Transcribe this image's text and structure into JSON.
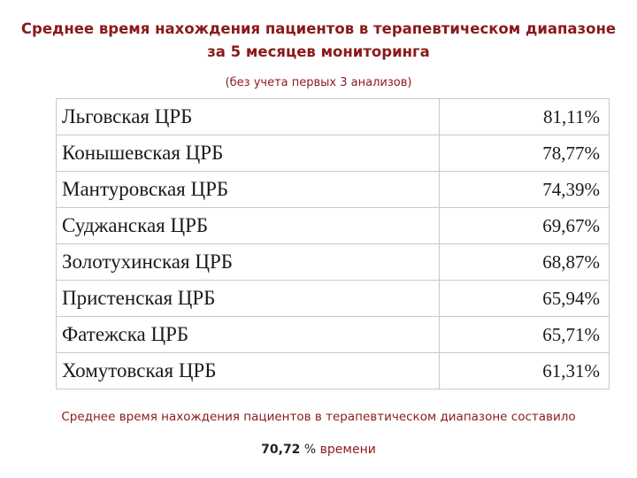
{
  "title": {
    "line1": "Среднее время нахождения пациентов в терапевтическом диапазоне",
    "line2": "за 5 месяцев мониторинга"
  },
  "subtitle": "(без учета первых 3 анализов)",
  "table": {
    "rows": [
      {
        "name": "Льговская ЦРБ",
        "value": "81,11%"
      },
      {
        "name": "Конышевская ЦРБ",
        "value": "78,77%"
      },
      {
        "name": "Мантуровская ЦРБ",
        "value": "74,39%"
      },
      {
        "name": "Суджанская ЦРБ",
        "value": "69,67%"
      },
      {
        "name": "Золотухинская ЦРБ",
        "value": "68,87%"
      },
      {
        "name": "Пристенская ЦРБ",
        "value": "65,94%"
      },
      {
        "name": "Фатежска ЦРБ",
        "value": "65,71%"
      },
      {
        "name": "Хомутовская ЦРБ",
        "value": "61,31%"
      }
    ]
  },
  "summary": {
    "text": "Среднее время нахождения пациентов в терапевтическом диапазоне составило",
    "value": "70,72",
    "percent": "%",
    "unit": "времени"
  },
  "colors": {
    "accent": "#8b1a1a",
    "text": "#1a1a1a",
    "border": "#c9c9c9"
  }
}
